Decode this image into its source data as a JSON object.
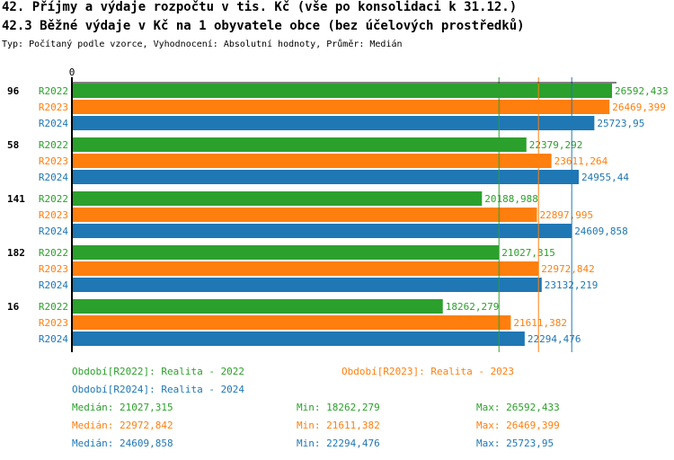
{
  "title": "42. Příjmy a výdaje rozpočtu v tis. Kč (vše po konsolidaci k 31.12.)",
  "subtitle": "42.3 Běžné výdaje v Kč na 1 obyvatele obce (bez účelových prostředků)",
  "info": "Typ: Počítaný podle vzorce, Vyhodnocení: Absolutní hodnoty, Průměr: Medián",
  "colors": {
    "R2022": "#2ca02c",
    "R2023": "#ff7f0e",
    "R2024": "#1f77b4"
  },
  "chart_data": {
    "type": "bar",
    "orientation": "horizontal",
    "x_tick_labels": [
      "0"
    ],
    "categories": [
      "96",
      "58",
      "141",
      "182",
      "16"
    ],
    "series": [
      {
        "name": "R2022",
        "values": [
          26592.433,
          22379.292,
          20188.988,
          21027.315,
          18262.279
        ],
        "labels": [
          "26592,433",
          "22379,292",
          "20188,988",
          "21027,315",
          "18262,279"
        ]
      },
      {
        "name": "R2023",
        "values": [
          26469.399,
          23611.264,
          22897.995,
          22972.842,
          21611.382
        ],
        "labels": [
          "26469,399",
          "23611,264",
          "22897,995",
          "22972,842",
          "21611,382"
        ]
      },
      {
        "name": "R2024",
        "values": [
          25723.95,
          24955.44,
          24609.858,
          23132.219,
          22294.476
        ],
        "labels": [
          "25723,95",
          "24955,44",
          "24609,858",
          "23132,219",
          "22294,476"
        ]
      }
    ],
    "medians": [
      21027.315,
      22972.842,
      24609.858
    ]
  },
  "legend": {
    "periods": [
      "Období[R2022]: Realita - 2022",
      "Období[R2023]: Realita - 2023",
      "Období[R2024]: Realita - 2024"
    ],
    "stats": [
      {
        "median": "Medián: 21027,315",
        "min": "Min: 18262,279",
        "max": "Max: 26592,433"
      },
      {
        "median": "Medián: 22972,842",
        "min": "Min: 21611,382",
        "max": "Max: 26469,399"
      },
      {
        "median": "Medián: 24609,858",
        "min": "Min: 22294,476",
        "max": "Max: 25723,95"
      }
    ]
  }
}
